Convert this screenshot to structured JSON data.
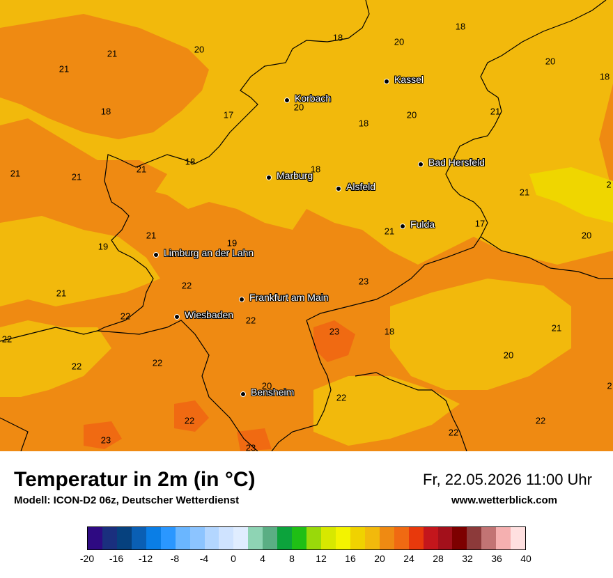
{
  "map": {
    "colors": {
      "t18": "#f2b90c",
      "t20": "#f1b70d",
      "t22": "#ef8a12",
      "t24": "#f06a12",
      "t16": "#efd600",
      "border": "#000000"
    },
    "cities": [
      {
        "name": "Kassel"
      },
      {
        "name": "Korbach"
      },
      {
        "name": "Bad Hersfeld"
      },
      {
        "name": "Marburg"
      },
      {
        "name": "Alsfeld"
      },
      {
        "name": "Fulda"
      },
      {
        "name": "Limburg an der Lahn"
      },
      {
        "name": "Frankfurt am Main"
      },
      {
        "name": "Wiesbaden"
      },
      {
        "name": "Bensheim"
      }
    ],
    "temps": [
      "18",
      "20",
      "18",
      "20",
      "21",
      "21",
      "20",
      "18",
      "17",
      "18",
      "20",
      "20",
      "21",
      "18",
      "18",
      "21",
      "21",
      "21",
      "18",
      "21",
      "2",
      "21",
      "17",
      "20",
      "21",
      "19",
      "19",
      "23",
      "22",
      "21",
      "22",
      "22",
      "23",
      "18",
      "21",
      "22",
      "22",
      "22",
      "20",
      "20",
      "22",
      "22",
      "23",
      "22",
      "23",
      "22",
      "22",
      "2"
    ]
  },
  "footer": {
    "title": "Temperatur in 2m (in °C)",
    "model": "Modell: ICON-D2 06z, Deutscher Wetterdienst",
    "datetime": "Fr, 22.05.2026 11:00 Uhr",
    "website": "www.wetterblick.com"
  },
  "legend": {
    "colors": [
      "#2e0a82",
      "#1a2f7e",
      "#06417e",
      "#0a5fb4",
      "#0a7ee6",
      "#2a97ff",
      "#6ab6ff",
      "#8cc4ff",
      "#b3d6ff",
      "#cfe3ff",
      "#e0edff",
      "#8ed4b4",
      "#5aae84",
      "#0ca33c",
      "#1fbf15",
      "#99d90a",
      "#d7e800",
      "#f3f300",
      "#f0d200",
      "#f2b90c",
      "#ef8a12",
      "#f06a12",
      "#e8390c",
      "#c4161c",
      "#a3101b",
      "#7d0000",
      "#8c3a3a",
      "#c27474",
      "#f5b0b0",
      "#ffe0e0"
    ],
    "ticks": [
      "-20",
      "-16",
      "-12",
      "-8",
      "-4",
      "0",
      "4",
      "8",
      "12",
      "16",
      "20",
      "24",
      "28",
      "32",
      "36",
      "40"
    ]
  }
}
